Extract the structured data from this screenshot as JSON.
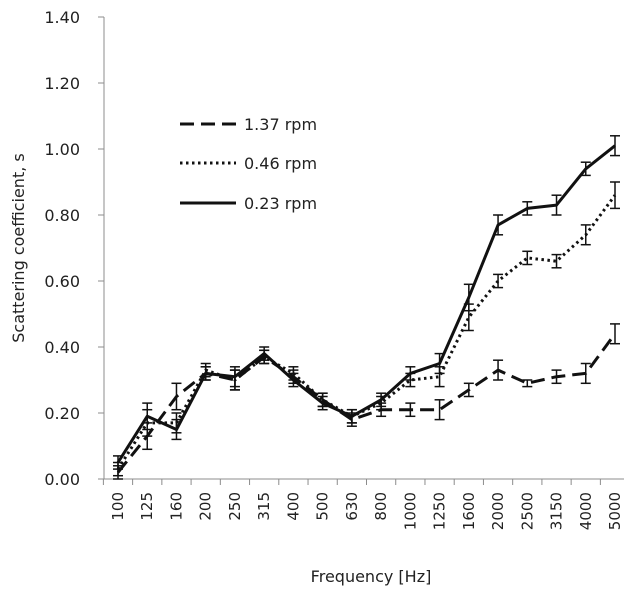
{
  "chart_data": {
    "type": "line",
    "title": "",
    "xlabel": "Frequency [Hz]",
    "ylabel": "Scattering coefficient, s",
    "categories": [
      "100",
      "125",
      "160",
      "200",
      "250",
      "315",
      "400",
      "500",
      "630",
      "800",
      "1000",
      "1250",
      "1600",
      "2000",
      "2500",
      "3150",
      "4000",
      "5000"
    ],
    "ylim": [
      0,
      1.4
    ],
    "yticks": [
      "0.00",
      "0.20",
      "0.40",
      "0.60",
      "0.80",
      "1.00",
      "1.20",
      "1.40"
    ],
    "grid": false,
    "legend_position": "upper-left",
    "series": [
      {
        "name": "1.37 rpm",
        "style": "dashed",
        "values": [
          0.02,
          0.13,
          0.25,
          0.32,
          0.3,
          0.37,
          0.31,
          0.24,
          0.18,
          0.21,
          0.21,
          0.21,
          0.27,
          0.33,
          0.29,
          0.31,
          0.32,
          0.44
        ],
        "errors": [
          0.02,
          0.04,
          0.04,
          0.02,
          0.03,
          0.02,
          0.02,
          0.02,
          0.02,
          0.02,
          0.02,
          0.03,
          0.02,
          0.03,
          0.01,
          0.02,
          0.03,
          0.03
        ]
      },
      {
        "name": "0.46 rpm",
        "style": "dotted",
        "values": [
          0.03,
          0.17,
          0.17,
          0.33,
          0.3,
          0.37,
          0.32,
          0.24,
          0.19,
          0.23,
          0.3,
          0.31,
          0.49,
          0.6,
          0.67,
          0.66,
          0.74,
          0.86
        ],
        "errors": [
          0.02,
          0.04,
          0.03,
          0.02,
          0.03,
          0.02,
          0.02,
          0.02,
          0.02,
          0.02,
          0.02,
          0.03,
          0.04,
          0.02,
          0.02,
          0.02,
          0.03,
          0.04
        ]
      },
      {
        "name": "0.23 rpm",
        "style": "solid",
        "values": [
          0.05,
          0.19,
          0.15,
          0.32,
          0.31,
          0.38,
          0.3,
          0.23,
          0.19,
          0.24,
          0.32,
          0.35,
          0.55,
          0.77,
          0.82,
          0.83,
          0.94,
          1.01
        ],
        "errors": [
          0.02,
          0.04,
          0.03,
          0.02,
          0.03,
          0.02,
          0.02,
          0.02,
          0.02,
          0.02,
          0.02,
          0.03,
          0.04,
          0.03,
          0.02,
          0.03,
          0.02,
          0.03
        ]
      }
    ]
  }
}
